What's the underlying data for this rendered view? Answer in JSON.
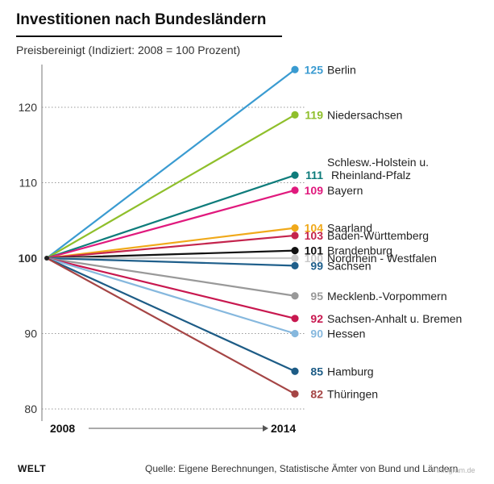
{
  "header": {
    "title": "Investitionen nach Bundesländern",
    "subtitle": "Preisbereinigt (Indiziert: 2008 = 100 Prozent)"
  },
  "footer": {
    "logo": "WELT",
    "source": "Quelle:  Eigene Berechnungen, Statistische Ämter von Bund und Ländern",
    "credit": "infogram.de"
  },
  "chart_data": {
    "type": "line",
    "title": "Investitionen nach Bundesländern",
    "subtitle": "Preisbereinigt (Indiziert: 2008 = 100 Prozent)",
    "x": [
      "2008",
      "2014"
    ],
    "ylim": [
      78,
      126
    ],
    "yticks": [
      80,
      90,
      100,
      110,
      120
    ],
    "grid": true,
    "legend": "end-labels",
    "series": [
      {
        "name": "Berlin",
        "values": [
          100,
          125
        ],
        "label": "125",
        "color": "#3a9bd1"
      },
      {
        "name": "Niedersachsen",
        "values": [
          100,
          119
        ],
        "label": "119",
        "color": "#8fbf2b"
      },
      {
        "name": "Schlesw.-Holstein u.\nRheinland-Pfalz",
        "values": [
          100,
          111
        ],
        "label": "111",
        "color": "#0e7c7b"
      },
      {
        "name": "Bayern",
        "values": [
          100,
          109
        ],
        "label": "109",
        "color": "#e0197d"
      },
      {
        "name": "Saarland",
        "values": [
          100,
          104
        ],
        "label": "104",
        "color": "#f0a91a"
      },
      {
        "name": "Baden-Württemberg",
        "values": [
          100,
          103
        ],
        "label": "103",
        "color": "#c4244d"
      },
      {
        "name": "Brandenburg",
        "values": [
          100,
          101
        ],
        "label": "101",
        "color": "#111111"
      },
      {
        "name": "Nordrhein - Westfalen",
        "values": [
          100,
          100
        ],
        "label": "100",
        "color": "#c9c9c9"
      },
      {
        "name": "Sachsen",
        "values": [
          100,
          99
        ],
        "label": "99",
        "color": "#1f5f8b"
      },
      {
        "name": "Mecklenb.-Vorpommern",
        "values": [
          100,
          95
        ],
        "label": "95",
        "color": "#999999"
      },
      {
        "name": "Sachsen-Anhalt u. Bremen",
        "values": [
          100,
          92
        ],
        "label": "92",
        "color": "#c8184f"
      },
      {
        "name": "Hessen",
        "values": [
          100,
          90
        ],
        "label": "90",
        "color": "#86b8de"
      },
      {
        "name": "Hamburg",
        "values": [
          100,
          85
        ],
        "label": "85",
        "color": "#1d5c86"
      },
      {
        "name": "Thüringen",
        "values": [
          100,
          82
        ],
        "label": "82",
        "color": "#a54545"
      }
    ]
  }
}
